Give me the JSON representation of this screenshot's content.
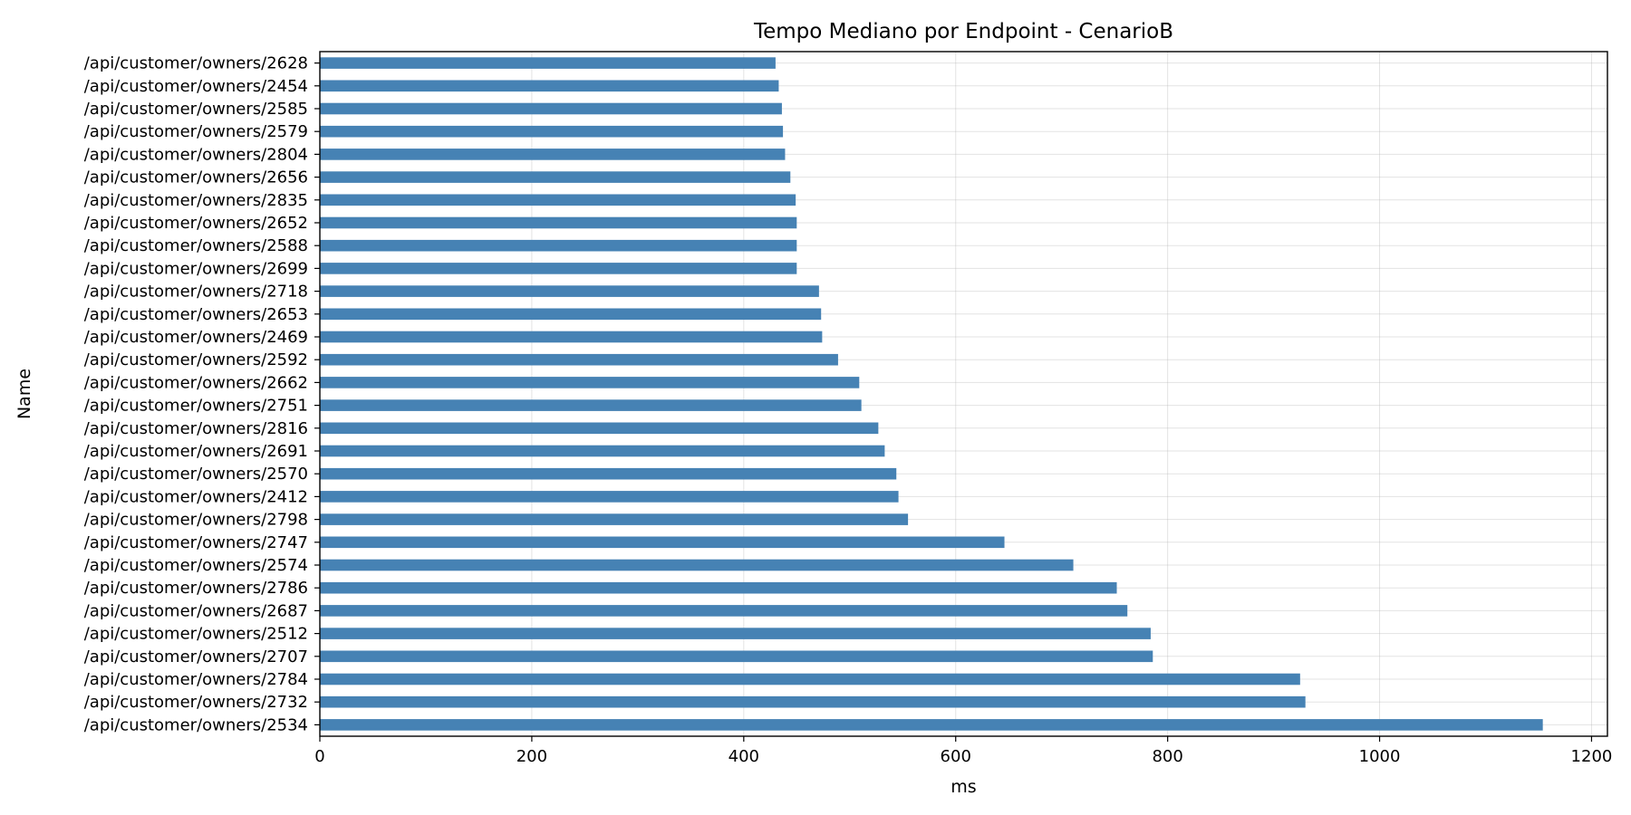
{
  "chart_data": {
    "type": "bar",
    "orientation": "horizontal",
    "title": "Tempo Mediano por Endpoint - CenarioB",
    "xlabel": "ms",
    "ylabel": "Name",
    "xlim": [
      0,
      1215
    ],
    "xticks": [
      0,
      200,
      400,
      600,
      800,
      1000,
      1200
    ],
    "grid": true,
    "color": "#4682b4",
    "categories": [
      "/api/customer/owners/2628",
      "/api/customer/owners/2454",
      "/api/customer/owners/2585",
      "/api/customer/owners/2579",
      "/api/customer/owners/2804",
      "/api/customer/owners/2656",
      "/api/customer/owners/2835",
      "/api/customer/owners/2652",
      "/api/customer/owners/2588",
      "/api/customer/owners/2699",
      "/api/customer/owners/2718",
      "/api/customer/owners/2653",
      "/api/customer/owners/2469",
      "/api/customer/owners/2592",
      "/api/customer/owners/2662",
      "/api/customer/owners/2751",
      "/api/customer/owners/2816",
      "/api/customer/owners/2691",
      "/api/customer/owners/2570",
      "/api/customer/owners/2412",
      "/api/customer/owners/2798",
      "/api/customer/owners/2747",
      "/api/customer/owners/2574",
      "/api/customer/owners/2786",
      "/api/customer/owners/2687",
      "/api/customer/owners/2512",
      "/api/customer/owners/2707",
      "/api/customer/owners/2784",
      "/api/customer/owners/2732",
      "/api/customer/owners/2534"
    ],
    "values": [
      430,
      433,
      436,
      437,
      439,
      444,
      449,
      450,
      450,
      450,
      471,
      473,
      474,
      489,
      509,
      511,
      527,
      533,
      544,
      546,
      555,
      646,
      711,
      752,
      762,
      784,
      786,
      925,
      930,
      1154
    ]
  }
}
